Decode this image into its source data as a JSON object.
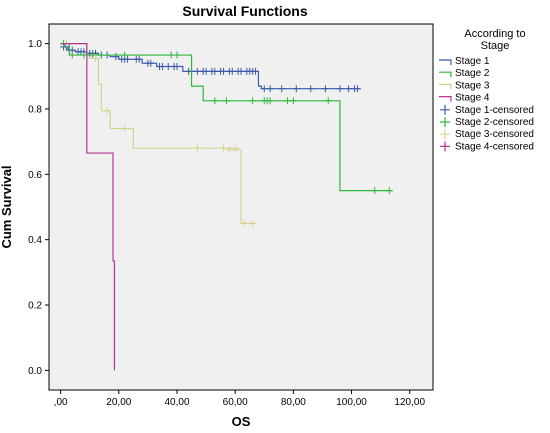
{
  "chart_data": {
    "type": "line",
    "title": "Survival Functions",
    "xlabel": "OS",
    "ylabel": "Cum Survival",
    "xlim": [
      -4,
      128
    ],
    "ylim": [
      -0.06,
      1.06
    ],
    "xticks": [
      0,
      20,
      40,
      60,
      80,
      100,
      120
    ],
    "xtick_labels": [
      ",00",
      "20,00",
      "40,00",
      "60,00",
      "80,00",
      "100,00",
      "120,00"
    ],
    "yticks": [
      0.0,
      0.2,
      0.4,
      0.6,
      0.8,
      1.0
    ],
    "ytick_labels": [
      "0.0",
      "0.2",
      "0.4",
      "0.6",
      "0.8",
      "1.0"
    ],
    "grid": false,
    "background": "#f0f0f0",
    "legend": {
      "title": "According to Stage",
      "title_lines": [
        "According to",
        "Stage"
      ],
      "placement": "right",
      "entries": [
        {
          "label": "Stage 1",
          "series": 0,
          "kind": "line"
        },
        {
          "label": "Stage 2",
          "series": 1,
          "kind": "line"
        },
        {
          "label": "Stage 3",
          "series": 2,
          "kind": "line"
        },
        {
          "label": "Stage 4",
          "series": 3,
          "kind": "line"
        },
        {
          "label": "Stage 1-censored",
          "series": 0,
          "kind": "censor"
        },
        {
          "label": "Stage 2-censored",
          "series": 1,
          "kind": "censor"
        },
        {
          "label": "Stage 3-censored",
          "series": 2,
          "kind": "censor"
        },
        {
          "label": "Stage 4-censored",
          "series": 3,
          "kind": "censor"
        }
      ]
    },
    "series": [
      {
        "name": "Stage 1",
        "color": "#3c5aa8",
        "steps": [
          [
            0,
            1.0
          ],
          [
            1.5,
            0.99
          ],
          [
            2.5,
            0.98
          ],
          [
            5,
            0.975
          ],
          [
            9,
            0.97
          ],
          [
            13,
            0.965
          ],
          [
            17,
            0.96
          ],
          [
            20,
            0.952
          ],
          [
            28,
            0.94
          ],
          [
            33,
            0.93
          ],
          [
            42,
            0.915
          ],
          [
            68,
            0.87
          ],
          [
            69,
            0.862
          ],
          [
            103,
            0.862
          ]
        ],
        "censored": [
          [
            1,
            0.99
          ],
          [
            2,
            0.99
          ],
          [
            3,
            0.98
          ],
          [
            4,
            0.98
          ],
          [
            6,
            0.975
          ],
          [
            7,
            0.975
          ],
          [
            8,
            0.975
          ],
          [
            10,
            0.97
          ],
          [
            11,
            0.97
          ],
          [
            12,
            0.97
          ],
          [
            14,
            0.965
          ],
          [
            16,
            0.965
          ],
          [
            19,
            0.96
          ],
          [
            21,
            0.952
          ],
          [
            22,
            0.952
          ],
          [
            23,
            0.952
          ],
          [
            26,
            0.952
          ],
          [
            27,
            0.952
          ],
          [
            30,
            0.94
          ],
          [
            31,
            0.94
          ],
          [
            34,
            0.93
          ],
          [
            35,
            0.93
          ],
          [
            37,
            0.93
          ],
          [
            39,
            0.93
          ],
          [
            40,
            0.93
          ],
          [
            44,
            0.915
          ],
          [
            45,
            0.915
          ],
          [
            47,
            0.915
          ],
          [
            49,
            0.915
          ],
          [
            50,
            0.915
          ],
          [
            52,
            0.915
          ],
          [
            53,
            0.915
          ],
          [
            55,
            0.915
          ],
          [
            56,
            0.915
          ],
          [
            58,
            0.915
          ],
          [
            59,
            0.915
          ],
          [
            61,
            0.915
          ],
          [
            62,
            0.915
          ],
          [
            64,
            0.915
          ],
          [
            65,
            0.915
          ],
          [
            66,
            0.915
          ],
          [
            67,
            0.915
          ],
          [
            70,
            0.862
          ],
          [
            72,
            0.862
          ],
          [
            76,
            0.862
          ],
          [
            81,
            0.862
          ],
          [
            86,
            0.862
          ],
          [
            91,
            0.862
          ],
          [
            96,
            0.862
          ],
          [
            99,
            0.862
          ],
          [
            101,
            0.862
          ],
          [
            102,
            0.862
          ]
        ]
      },
      {
        "name": "Stage 2",
        "color": "#2db83d",
        "steps": [
          [
            0,
            1.0
          ],
          [
            3,
            0.965
          ],
          [
            45,
            0.87
          ],
          [
            49,
            0.825
          ],
          [
            96,
            0.55
          ],
          [
            114,
            0.55
          ]
        ],
        "censored": [
          [
            1,
            1.0
          ],
          [
            2,
            1.0
          ],
          [
            4,
            0.965
          ],
          [
            8,
            0.965
          ],
          [
            11,
            0.965
          ],
          [
            14,
            0.965
          ],
          [
            22,
            0.965
          ],
          [
            38,
            0.965
          ],
          [
            40,
            0.965
          ],
          [
            53,
            0.825
          ],
          [
            57,
            0.825
          ],
          [
            66,
            0.825
          ],
          [
            70,
            0.825
          ],
          [
            71,
            0.825
          ],
          [
            72,
            0.825
          ],
          [
            78,
            0.825
          ],
          [
            80,
            0.825
          ],
          [
            92,
            0.825
          ],
          [
            108,
            0.55
          ],
          [
            113,
            0.55
          ]
        ]
      },
      {
        "name": "Stage 3",
        "color": "#d6d38f",
        "steps": [
          [
            0,
            1.0
          ],
          [
            9,
            0.955
          ],
          [
            13,
            0.875
          ],
          [
            14,
            0.795
          ],
          [
            17,
            0.74
          ],
          [
            25,
            0.68
          ],
          [
            61,
            0.675
          ],
          [
            62,
            0.45
          ],
          [
            66,
            0.45
          ]
        ],
        "censored": [
          [
            2,
            1.0
          ],
          [
            12,
            0.955
          ],
          [
            16,
            0.795
          ],
          [
            22,
            0.74
          ],
          [
            47,
            0.68
          ],
          [
            56,
            0.68
          ],
          [
            58,
            0.675
          ],
          [
            60,
            0.675
          ],
          [
            63,
            0.45
          ],
          [
            66,
            0.45
          ]
        ]
      },
      {
        "name": "Stage 4",
        "color": "#b4388f",
        "steps": [
          [
            0,
            1.0
          ],
          [
            9,
            0.665
          ],
          [
            18,
            0.335
          ],
          [
            18.5,
            0.0
          ]
        ],
        "censored": []
      }
    ]
  }
}
